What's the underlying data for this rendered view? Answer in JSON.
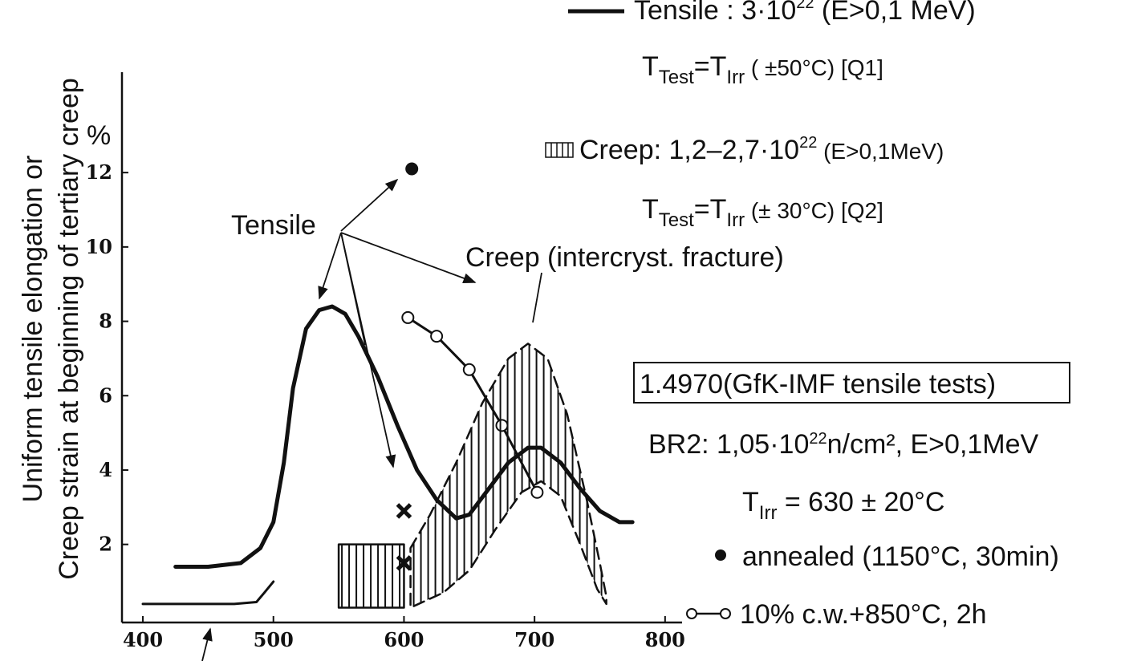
{
  "chart_data": {
    "type": "line",
    "ylabel": [
      "Uniform tensile elongation or",
      "Creep strain at beginning of tertiary creep"
    ],
    "yunit": "%",
    "xlim": [
      384,
      813
    ],
    "ylim": [
      -0.1,
      14.7
    ],
    "xticks": [
      400,
      500,
      600,
      700,
      800
    ],
    "yticks": [
      2,
      4,
      6,
      8,
      10,
      12
    ],
    "series": [
      {
        "color": "#111",
        "width": 5,
        "x": [
          425,
          450,
          475,
          490,
          500,
          508,
          515,
          525,
          535,
          545,
          555,
          565,
          580,
          595,
          610,
          625,
          640,
          650,
          665,
          680,
          695,
          705,
          720,
          735,
          750,
          765,
          775
        ],
        "values": [
          1.4,
          1.4,
          1.5,
          1.9,
          2.6,
          4.2,
          6.2,
          7.8,
          8.3,
          8.4,
          8.2,
          7.6,
          6.5,
          5.2,
          4.0,
          3.2,
          2.7,
          2.8,
          3.5,
          4.2,
          4.6,
          4.6,
          4.2,
          3.5,
          2.9,
          2.6,
          2.6
        ]
      },
      {
        "color": "#111",
        "width": 3,
        "x": [
          400,
          440,
          470,
          487,
          493,
          500
        ],
        "values": [
          0.4,
          0.4,
          0.4,
          0.45,
          0.7,
          1.0
        ]
      },
      {
        "color": "#111",
        "width": 3,
        "marker": "open",
        "x": [
          603,
          625,
          650,
          675,
          702
        ],
        "values": [
          8.1,
          7.6,
          6.7,
          5.2,
          3.4
        ]
      },
      {
        "color": "#111",
        "marker": "filled",
        "x": [
          606
        ],
        "values": [
          12.1
        ]
      },
      {
        "color": "#111",
        "marker": "cross",
        "x": [
          600,
          600
        ],
        "values": [
          2.9,
          1.5
        ]
      },
      {
        "color": "#111",
        "width": 2.5,
        "dash": true,
        "hatch": true,
        "closed": true,
        "x": [
          605,
          620,
          640,
          660,
          680,
          695,
          710,
          725,
          740,
          750,
          755,
          755,
          748,
          735,
          720,
          705,
          690,
          670,
          650,
          630,
          605
        ],
        "values": [
          1.9,
          2.8,
          4.2,
          5.8,
          7.0,
          7.4,
          7.0,
          5.5,
          3.2,
          1.5,
          0.6,
          0.4,
          0.8,
          2.0,
          3.3,
          3.7,
          3.4,
          2.4,
          1.3,
          0.7,
          0.3
        ]
      },
      {
        "color": "#111",
        "width": 2.5,
        "hatch": true,
        "closed": true,
        "x": [
          550,
          600,
          600,
          550
        ],
        "values": [
          2.0,
          2.0,
          0.3,
          0.3
        ]
      }
    ],
    "annotations": {
      "tensile": "Tensile",
      "creep": "Creep (intercryst. fracture)",
      "legend_tensile": [
        "Tensile :  3·10",
        "22",
        " (E>0,1 MeV)"
      ],
      "legend_q1": [
        "T",
        "Test",
        "=T",
        "Irr",
        "  ( ±50°C) [Q1]"
      ],
      "legend_creep": [
        "Creep: 1,2–2,7·10",
        "22",
        " (E>0,1MeV)"
      ],
      "legend_q2": [
        "T",
        "Test",
        "=T",
        "Irr",
        "  (± 30°C) [Q2]"
      ],
      "material": "1.4970(GfK-IMF tensile tests)",
      "br2": [
        "BR2: 1,05·10",
        "22",
        "n/cm², E>0,1MeV"
      ],
      "tirr": [
        "T",
        "Irr",
        " = 630 ± 20°C"
      ],
      "annealed": "annealed (1150°C, 30min)",
      "cw": "10% c.w.+850°C, 2h"
    }
  }
}
